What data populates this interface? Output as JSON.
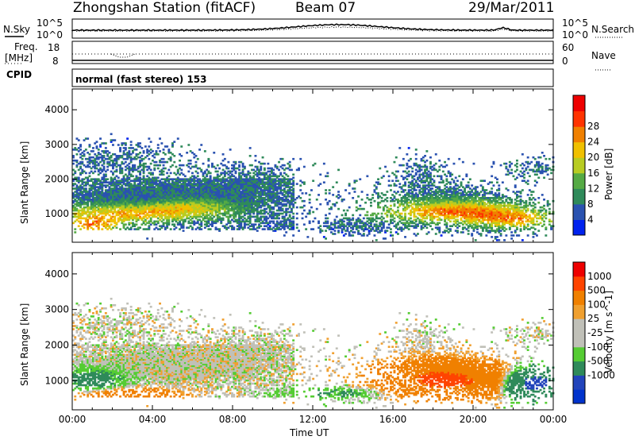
{
  "header": {
    "title": "Zhongshan Station (fitACF)",
    "beam": "Beam 07",
    "date": "29/Mar/2011"
  },
  "top_panel": {
    "left_label": "N.Sky",
    "right_label": "N.Search",
    "left_ticks": [
      "10^5",
      "10^0"
    ],
    "right_ticks": [
      "10^5",
      "10^0"
    ]
  },
  "freq_panel": {
    "left_label_line1": "Freq.",
    "left_label_line2": "[MHz]",
    "right_label": "Nave",
    "left_ticks": [
      "18",
      "8"
    ],
    "right_ticks": [
      "60",
      "0"
    ]
  },
  "cpid": {
    "label": "CPID",
    "value": "normal (fast stereo) 153"
  },
  "colors": {
    "power_scale": [
      "#0022ee",
      "#2a52b0",
      "#2f8a5a",
      "#55aa44",
      "#b8cc22",
      "#f0c000",
      "#f08000",
      "#ff3300",
      "#ee0000"
    ],
    "velocity_scale": [
      "#ee0000",
      "#ff4400",
      "#f08000",
      "#f0a030",
      "#c0c0b8",
      "#c0c0b8",
      "#55cc33",
      "#2f8a5a",
      "#2244bb",
      "#0033cc"
    ]
  },
  "chart_data": [
    {
      "type": "heatmap",
      "name": "Power",
      "ylabel": "Slant Range [km]",
      "ylim": [
        180,
        4600
      ],
      "xlim": [
        "00:00",
        "24:00"
      ],
      "yticks": [
        1000,
        2000,
        3000,
        4000
      ],
      "colorbar": {
        "label": "Power [dB]",
        "ticks": [
          4,
          8,
          12,
          16,
          20,
          24,
          28
        ]
      }
    },
    {
      "type": "heatmap",
      "name": "Velocity",
      "ylabel": "Slant Range [km]",
      "xlabel": "Time UT",
      "ylim": [
        180,
        4600
      ],
      "xlim": [
        "00:00",
        "24:00"
      ],
      "yticks": [
        1000,
        2000,
        3000,
        4000
      ],
      "xticks": [
        "00:00",
        "04:00",
        "08:00",
        "12:00",
        "16:00",
        "20:00",
        "00:00"
      ],
      "colorbar": {
        "label": "Velocity [m s^-1]",
        "ticks": [
          1000,
          500,
          100,
          25,
          -25,
          -100,
          -500,
          -1000
        ]
      }
    }
  ]
}
